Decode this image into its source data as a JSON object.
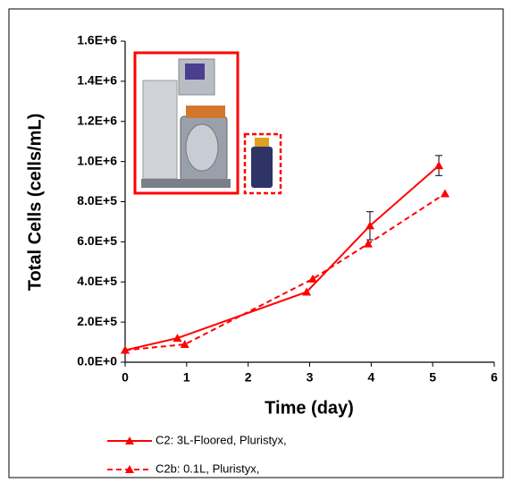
{
  "chart_data": {
    "type": "line",
    "x_label": "Time (day)",
    "y_label": "Total Cells (cells/mL)",
    "xlim": [
      0,
      6
    ],
    "xticks": [
      0,
      1,
      2,
      3,
      4,
      5,
      6
    ],
    "ylim": [
      0,
      1600000
    ],
    "yticks": [
      {
        "value": 0,
        "label": "0.0E+0"
      },
      {
        "value": 200000,
        "label": "2.0E+5"
      },
      {
        "value": 400000,
        "label": "4.0E+5"
      },
      {
        "value": 600000,
        "label": "6.0E+5"
      },
      {
        "value": 800000,
        "label": "8.0E+5"
      },
      {
        "value": 1000000,
        "label": "1.0E+6"
      },
      {
        "value": 1200000,
        "label": "1.2E+6"
      },
      {
        "value": 1400000,
        "label": "1.4E+6"
      },
      {
        "value": 1600000,
        "label": "1.6E+6"
      }
    ],
    "series": [
      {
        "name": "C2: 3L-Floored, Pluristyx,",
        "color": "#ff0000",
        "dash": false,
        "x": [
          0,
          0.85,
          2.95,
          3.98,
          5.1
        ],
        "values": [
          60000,
          120000,
          350000,
          680000,
          980000
        ],
        "errors": [
          null,
          null,
          null,
          70000,
          50000
        ]
      },
      {
        "name": "C2b: 0.1L, Pluristyx,",
        "color": "#ff0000",
        "dash": true,
        "x": [
          0,
          0.97,
          3.05,
          3.95,
          5.2
        ],
        "values": [
          60000,
          89000,
          415000,
          590000,
          840000
        ]
      }
    ]
  }
}
